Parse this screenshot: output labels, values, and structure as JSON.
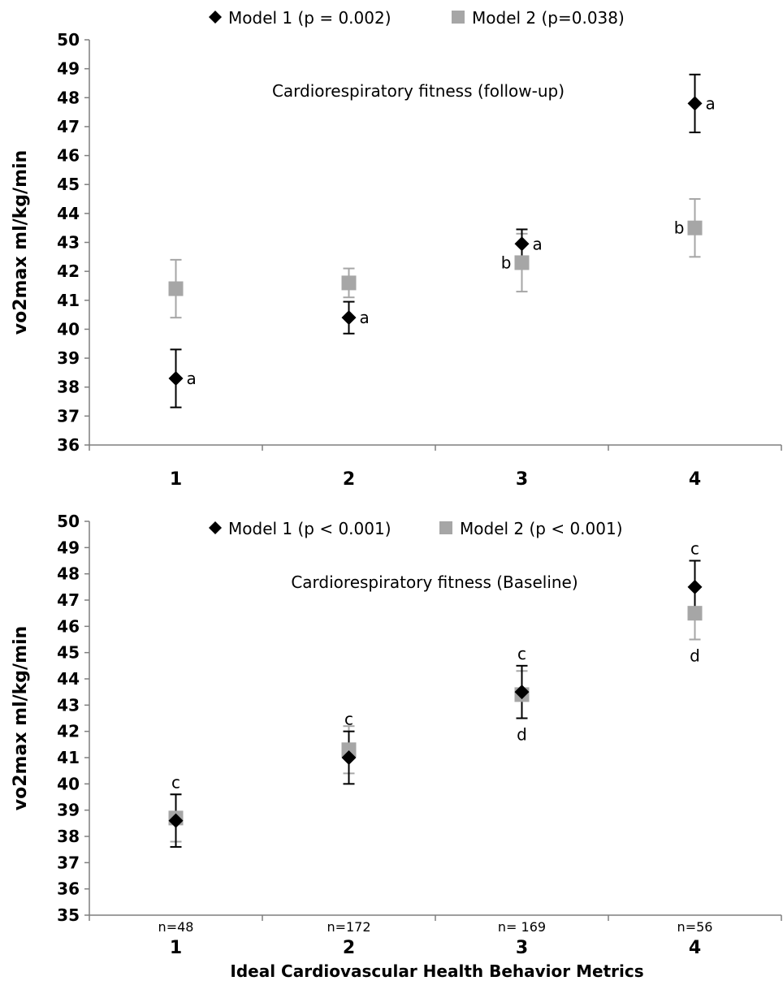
{
  "x_axis_title": "Ideal Cardiovascular Health Behavior Metrics",
  "chart_data": [
    {
      "type": "scatter",
      "title": "Cardiorespiratory fitness (follow-up)",
      "ylabel": "vo2max ml/kg/min",
      "xlabel": "",
      "categories": [
        "1",
        "2",
        "3",
        "4"
      ],
      "sample_sizes": [],
      "ylim": [
        36,
        50
      ],
      "ytick_step": 1,
      "grid": false,
      "legend_position": "top-center",
      "series": [
        {
          "name": "Model 1 (p = 0.002)",
          "marker": "diamond",
          "color": "#000000",
          "errorbar_color": "#000000",
          "values": [
            38.3,
            40.4,
            42.95,
            47.8
          ],
          "error": [
            1.0,
            0.55,
            0.5,
            1.0
          ],
          "annotations": [
            {
              "text": "a",
              "side": "right"
            },
            {
              "text": "a",
              "side": "right"
            },
            {
              "text": "a",
              "side": "right"
            },
            {
              "text": "a",
              "side": "right"
            }
          ]
        },
        {
          "name": "Model 2 (p=0.038)",
          "marker": "square",
          "color": "#a6a6a6",
          "errorbar_color": "#a6a6a6",
          "values": [
            41.4,
            41.6,
            42.3,
            43.5
          ],
          "error": [
            1.0,
            0.5,
            1.0,
            1.0
          ],
          "annotations": [
            null,
            null,
            {
              "text": "b",
              "side": "left"
            },
            {
              "text": "b",
              "side": "left"
            }
          ]
        }
      ]
    },
    {
      "type": "scatter",
      "title": "Cardiorespiratory fitness (Baseline)",
      "ylabel": "vo2max ml/kg/min",
      "xlabel": "Ideal Cardiovascular Health Behavior Metrics",
      "categories": [
        "1",
        "2",
        "3",
        "4"
      ],
      "sample_sizes": [
        "n=48",
        "n=172",
        "n= 169",
        "n=56"
      ],
      "ylim": [
        35,
        50
      ],
      "ytick_step": 1,
      "grid": false,
      "legend_position": "top-center",
      "series": [
        {
          "name": "Model 1 (p < 0.001)",
          "marker": "diamond",
          "color": "#000000",
          "errorbar_color": "#000000",
          "values": [
            38.6,
            41.0,
            43.5,
            47.5
          ],
          "error": [
            1.0,
            1.0,
            1.0,
            1.0
          ],
          "annotations": [
            {
              "text": "c",
              "side": "above"
            },
            {
              "text": "c",
              "side": "above"
            },
            {
              "text": "c",
              "side": "above"
            },
            {
              "text": "c",
              "side": "above"
            }
          ]
        },
        {
          "name": "Model 2 (p < 0.001)",
          "marker": "square",
          "color": "#a6a6a6",
          "errorbar_color": "#a6a6a6",
          "values": [
            38.7,
            41.3,
            43.4,
            46.5
          ],
          "error": [
            0.9,
            0.9,
            0.9,
            1.0
          ],
          "annotations": [
            null,
            null,
            {
              "text": "d",
              "side": "below"
            },
            {
              "text": "d",
              "side": "below"
            }
          ]
        }
      ]
    }
  ]
}
